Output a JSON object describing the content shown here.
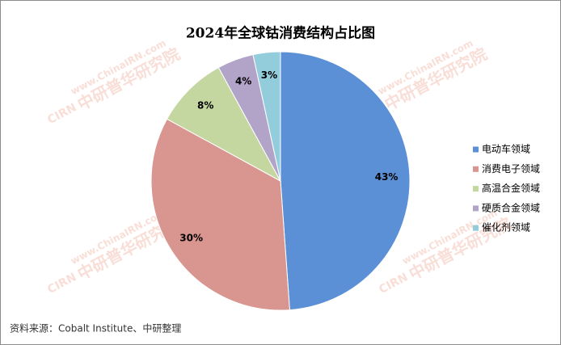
{
  "chart_data": {
    "type": "pie",
    "title": "2024年全球钴消费结构占比图",
    "categories": [
      "电动车领域",
      "消费电子领域",
      "高温合金领域",
      "硬质合金领域",
      "催化剂领域"
    ],
    "values": [
      43,
      30,
      8,
      4,
      3
    ],
    "value_labels": [
      "43%",
      "30%",
      "8%",
      "4%",
      "3%"
    ],
    "colors": [
      "#5b8fd6",
      "#d9958f",
      "#c4d7a0",
      "#b2a3c9",
      "#93cddc"
    ],
    "legend": "right",
    "source": "资料来源：Cobalt Institute、中研整理",
    "watermark_url": "www.ChinaIRN.com",
    "watermark_name": "中研普华研究院",
    "watermark_logo": "CIRN"
  }
}
